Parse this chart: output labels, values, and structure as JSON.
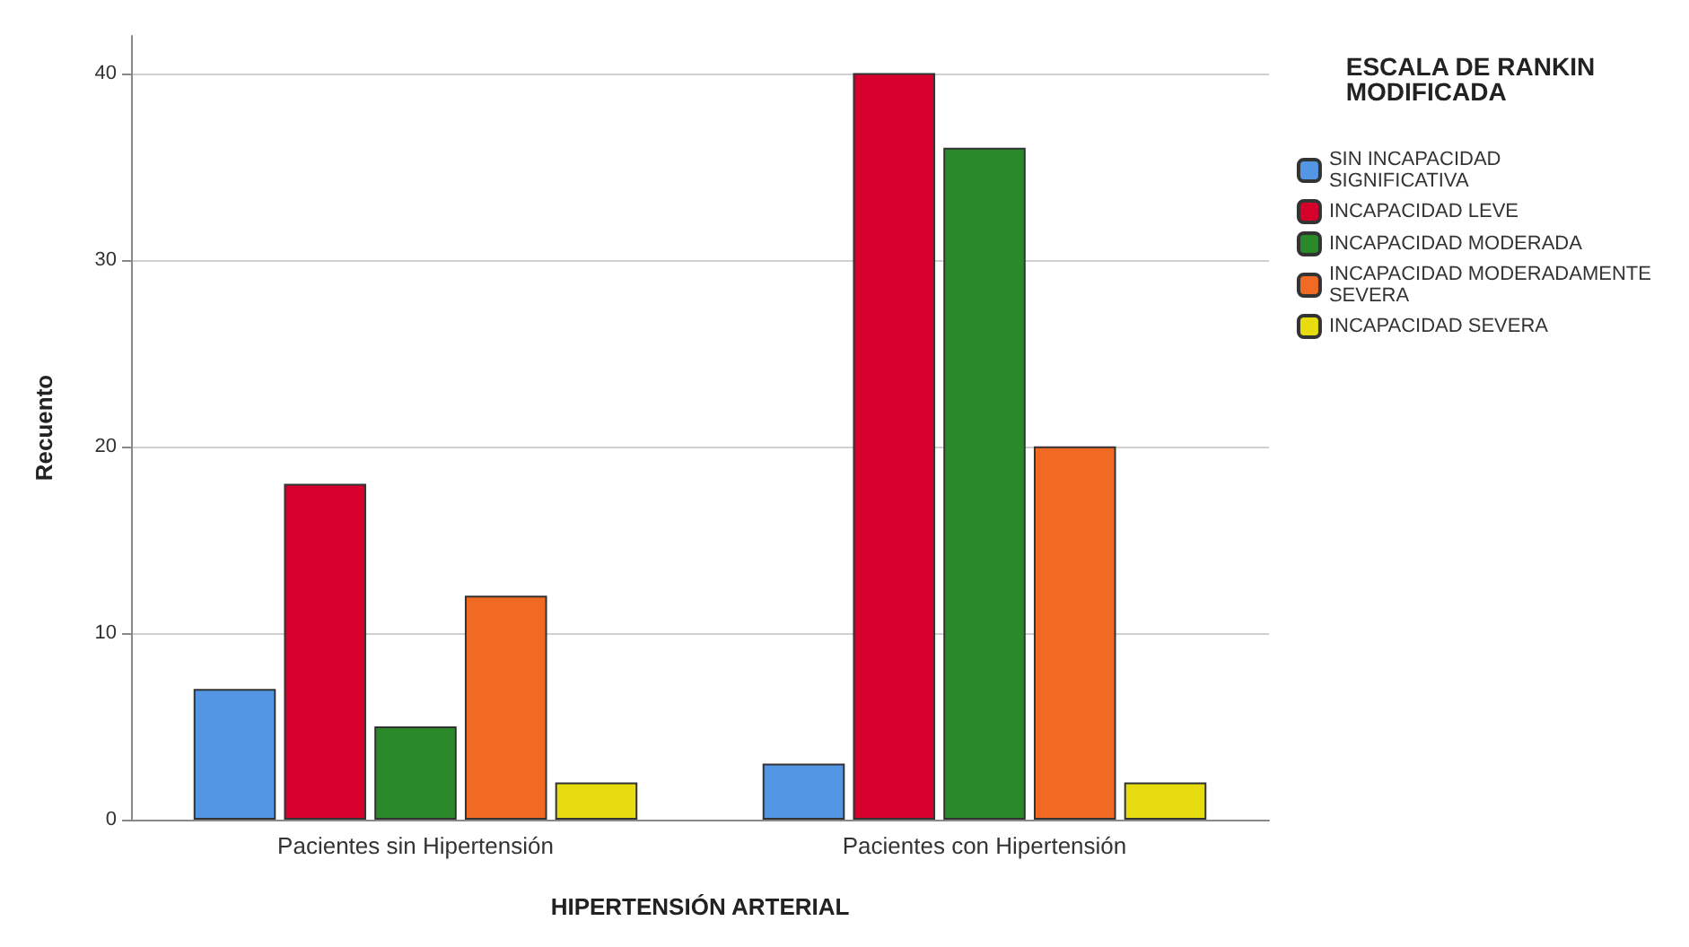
{
  "chart_data": {
    "type": "bar",
    "xlabel": "HIPERTENSIÓN ARTERIAL",
    "ylabel": "Recuento",
    "legend_title": "ESCALA DE RANKIN MODIFICADA",
    "categories": [
      "Pacientes sin Hipertensión",
      "Pacientes con Hipertensión"
    ],
    "series": [
      {
        "name": "SIN INCAPACIDAD SIGNIFICATIVA",
        "color": "#5296e4",
        "values": [
          7,
          3
        ]
      },
      {
        "name": "INCAPACIDAD LEVE",
        "color": "#d5012c",
        "values": [
          18,
          40
        ]
      },
      {
        "name": "INCAPACIDAD MODERADA",
        "color": "#2a8a2a",
        "values": [
          5,
          36
        ]
      },
      {
        "name": "INCAPACIDAD MODERADAMENTE SEVERA",
        "color": "#f06a24",
        "values": [
          12,
          20
        ]
      },
      {
        "name": "INCAPACIDAD SEVERA",
        "color": "#e6dc10",
        "values": [
          2,
          2
        ]
      }
    ],
    "ylim": [
      0,
      42
    ],
    "yticks": [
      0,
      10,
      20,
      30,
      40
    ],
    "grid": "y",
    "legend": "right"
  }
}
